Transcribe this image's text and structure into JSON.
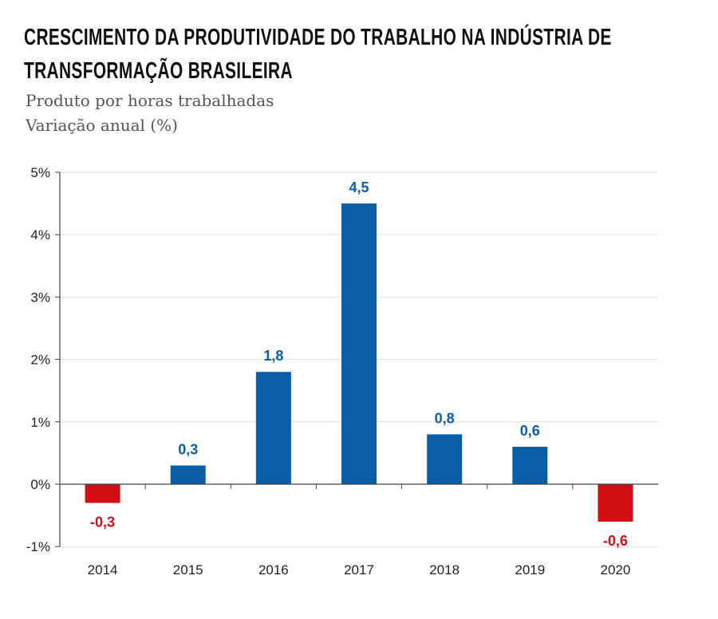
{
  "chart_data": {
    "type": "bar",
    "title": "CRESCIMENTO DA PRODUTIVIDADE DO TRABALHO NA INDÚSTRIA DE TRANSFORMAÇÃO BRASILEIRA",
    "subtitle": [
      "Produto por horas trabalhadas",
      "Variação anual (%)"
    ],
    "categories": [
      "2014",
      "2015",
      "2016",
      "2017",
      "2018",
      "2019",
      "2020"
    ],
    "values": [
      -0.3,
      0.3,
      1.8,
      4.5,
      0.8,
      0.6,
      -0.6
    ],
    "data_labels": [
      "-0,3",
      "0,3",
      "1,8",
      "4,5",
      "0,8",
      "0,6",
      "-0,6"
    ],
    "ylim": [
      -1,
      5
    ],
    "yticks": [
      -1,
      0,
      1,
      2,
      3,
      4,
      5
    ],
    "ytick_labels": [
      "-1%",
      "0%",
      "1%",
      "2%",
      "3%",
      "4%",
      "5%"
    ],
    "grid": true,
    "colors": {
      "positive": "#0a5ea8",
      "negative": "#d40f14"
    }
  }
}
